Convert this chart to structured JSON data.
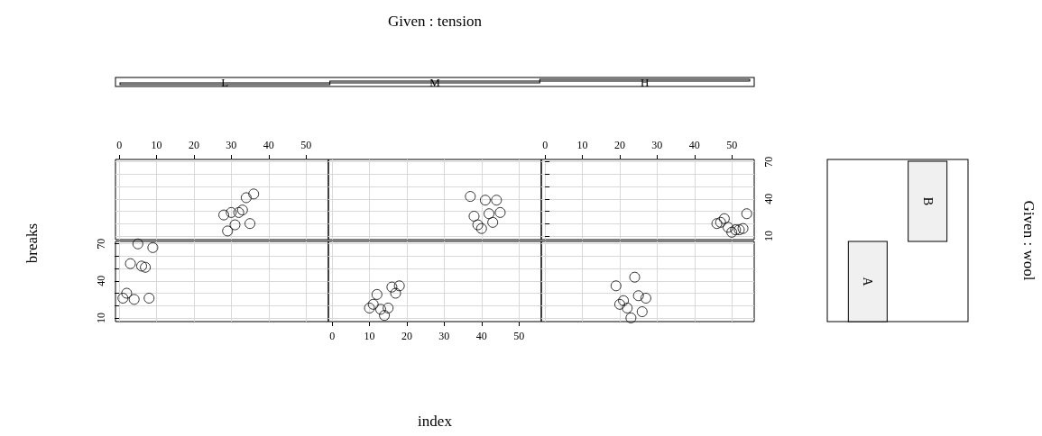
{
  "chart_data": [
    {
      "type": "other",
      "title": "Given : tension",
      "annotations": [
        "L",
        "M",
        "H"
      ]
    },
    {
      "type": "scatter",
      "ylabel": "breaks",
      "x": [
        28,
        29,
        30,
        31,
        32,
        33,
        34,
        35,
        36
      ],
      "values": [
        27,
        14,
        29,
        19,
        29,
        31,
        41,
        20,
        44
      ],
      "xlim": [
        -1,
        56
      ],
      "ylim": [
        7,
        72
      ],
      "xticks": [
        0,
        10,
        20,
        30,
        40,
        50
      ],
      "yticks": [
        10,
        {
          "value": 20,
          "label": null
        },
        {
          "value": 30,
          "label": null
        },
        40,
        {
          "value": 50,
          "label": null
        },
        {
          "value": 60,
          "label": null
        },
        70
      ],
      "grid": true,
      "marker": "circle",
      "tick_labels": "x"
    },
    {
      "type": "scatter",
      "x": [
        37,
        38,
        39,
        40,
        41,
        42,
        43,
        44,
        45
      ],
      "values": [
        42,
        26,
        19,
        16,
        39,
        28,
        21,
        39,
        29
      ],
      "xlim": [
        -1,
        56
      ],
      "ylim": [
        7,
        72
      ],
      "xticks": [
        0,
        10,
        20,
        30,
        40,
        50
      ],
      "yticks": [
        10,
        {
          "value": 20,
          "label": null
        },
        {
          "value": 30,
          "label": null
        },
        40,
        {
          "value": 50,
          "label": null
        },
        {
          "value": 60,
          "label": null
        },
        70
      ],
      "grid": true,
      "marker": "circle",
      "tick_labels": false
    },
    {
      "type": "scatter",
      "x": [
        46,
        47,
        48,
        49,
        50,
        51,
        52,
        53,
        54
      ],
      "values": [
        20,
        21,
        24,
        17,
        13,
        15,
        15,
        16,
        28
      ],
      "xlim": [
        -1,
        56
      ],
      "ylim": [
        7,
        72
      ],
      "xticks": [
        0,
        10,
        20,
        30,
        40,
        50
      ],
      "yticks": [
        10,
        {
          "value": 20,
          "label": null
        },
        {
          "value": 30,
          "label": null
        },
        40,
        {
          "value": 50,
          "label": null
        },
        {
          "value": 60,
          "label": null
        },
        70
      ],
      "grid": true,
      "marker": "circle"
    },
    {
      "type": "other",
      "title": "Given : wool",
      "annotations": [
        "A",
        "B"
      ]
    },
    {
      "type": "scatter",
      "x": [
        1,
        2,
        3,
        4,
        5,
        6,
        7,
        8,
        9
      ],
      "values": [
        26,
        30,
        54,
        25,
        70,
        52,
        51,
        26,
        67
      ],
      "xlim": [
        -1,
        56
      ],
      "ylim": [
        7,
        72
      ],
      "xticks": [
        0,
        10,
        20,
        30,
        40,
        50
      ],
      "yticks": [
        10,
        {
          "value": 20,
          "label": null
        },
        {
          "value": 30,
          "label": null
        },
        40,
        {
          "value": 50,
          "label": null
        },
        {
          "value": 60,
          "label": null
        },
        70
      ],
      "grid": true,
      "marker": "circle",
      "tick_labels": "y"
    },
    {
      "type": "scatter",
      "xlabel": "index",
      "x": [
        10,
        11,
        12,
        13,
        14,
        15,
        16,
        17,
        18
      ],
      "values": [
        18,
        21,
        29,
        17,
        12,
        18,
        35,
        30,
        36
      ],
      "xlim": [
        -1,
        56
      ],
      "ylim": [
        7,
        72
      ],
      "xticks": [
        0,
        10,
        20,
        30,
        40,
        50
      ],
      "yticks": [
        10,
        {
          "value": 20,
          "label": null
        },
        {
          "value": 30,
          "label": null
        },
        40,
        {
          "value": 50,
          "label": null
        },
        {
          "value": 60,
          "label": null
        },
        70
      ],
      "grid": true,
      "marker": "circle",
      "tick_labels": "x"
    },
    {
      "type": "scatter",
      "x": [
        19,
        20,
        21,
        22,
        23,
        24,
        25,
        26,
        27
      ],
      "values": [
        36,
        21,
        24,
        18,
        10,
        43,
        28,
        15,
        26
      ],
      "xlim": [
        -1,
        56
      ],
      "ylim": [
        7,
        72
      ],
      "xticks": [
        0,
        10,
        20,
        30,
        40,
        50
      ],
      "yticks": [
        10,
        {
          "value": 20,
          "label": null
        },
        {
          "value": 30,
          "label": null
        },
        40,
        {
          "value": 50,
          "label": null
        },
        {
          "value": 60,
          "label": null
        },
        70
      ],
      "grid": true,
      "marker": "circle",
      "tick_labels": false
    }
  ]
}
